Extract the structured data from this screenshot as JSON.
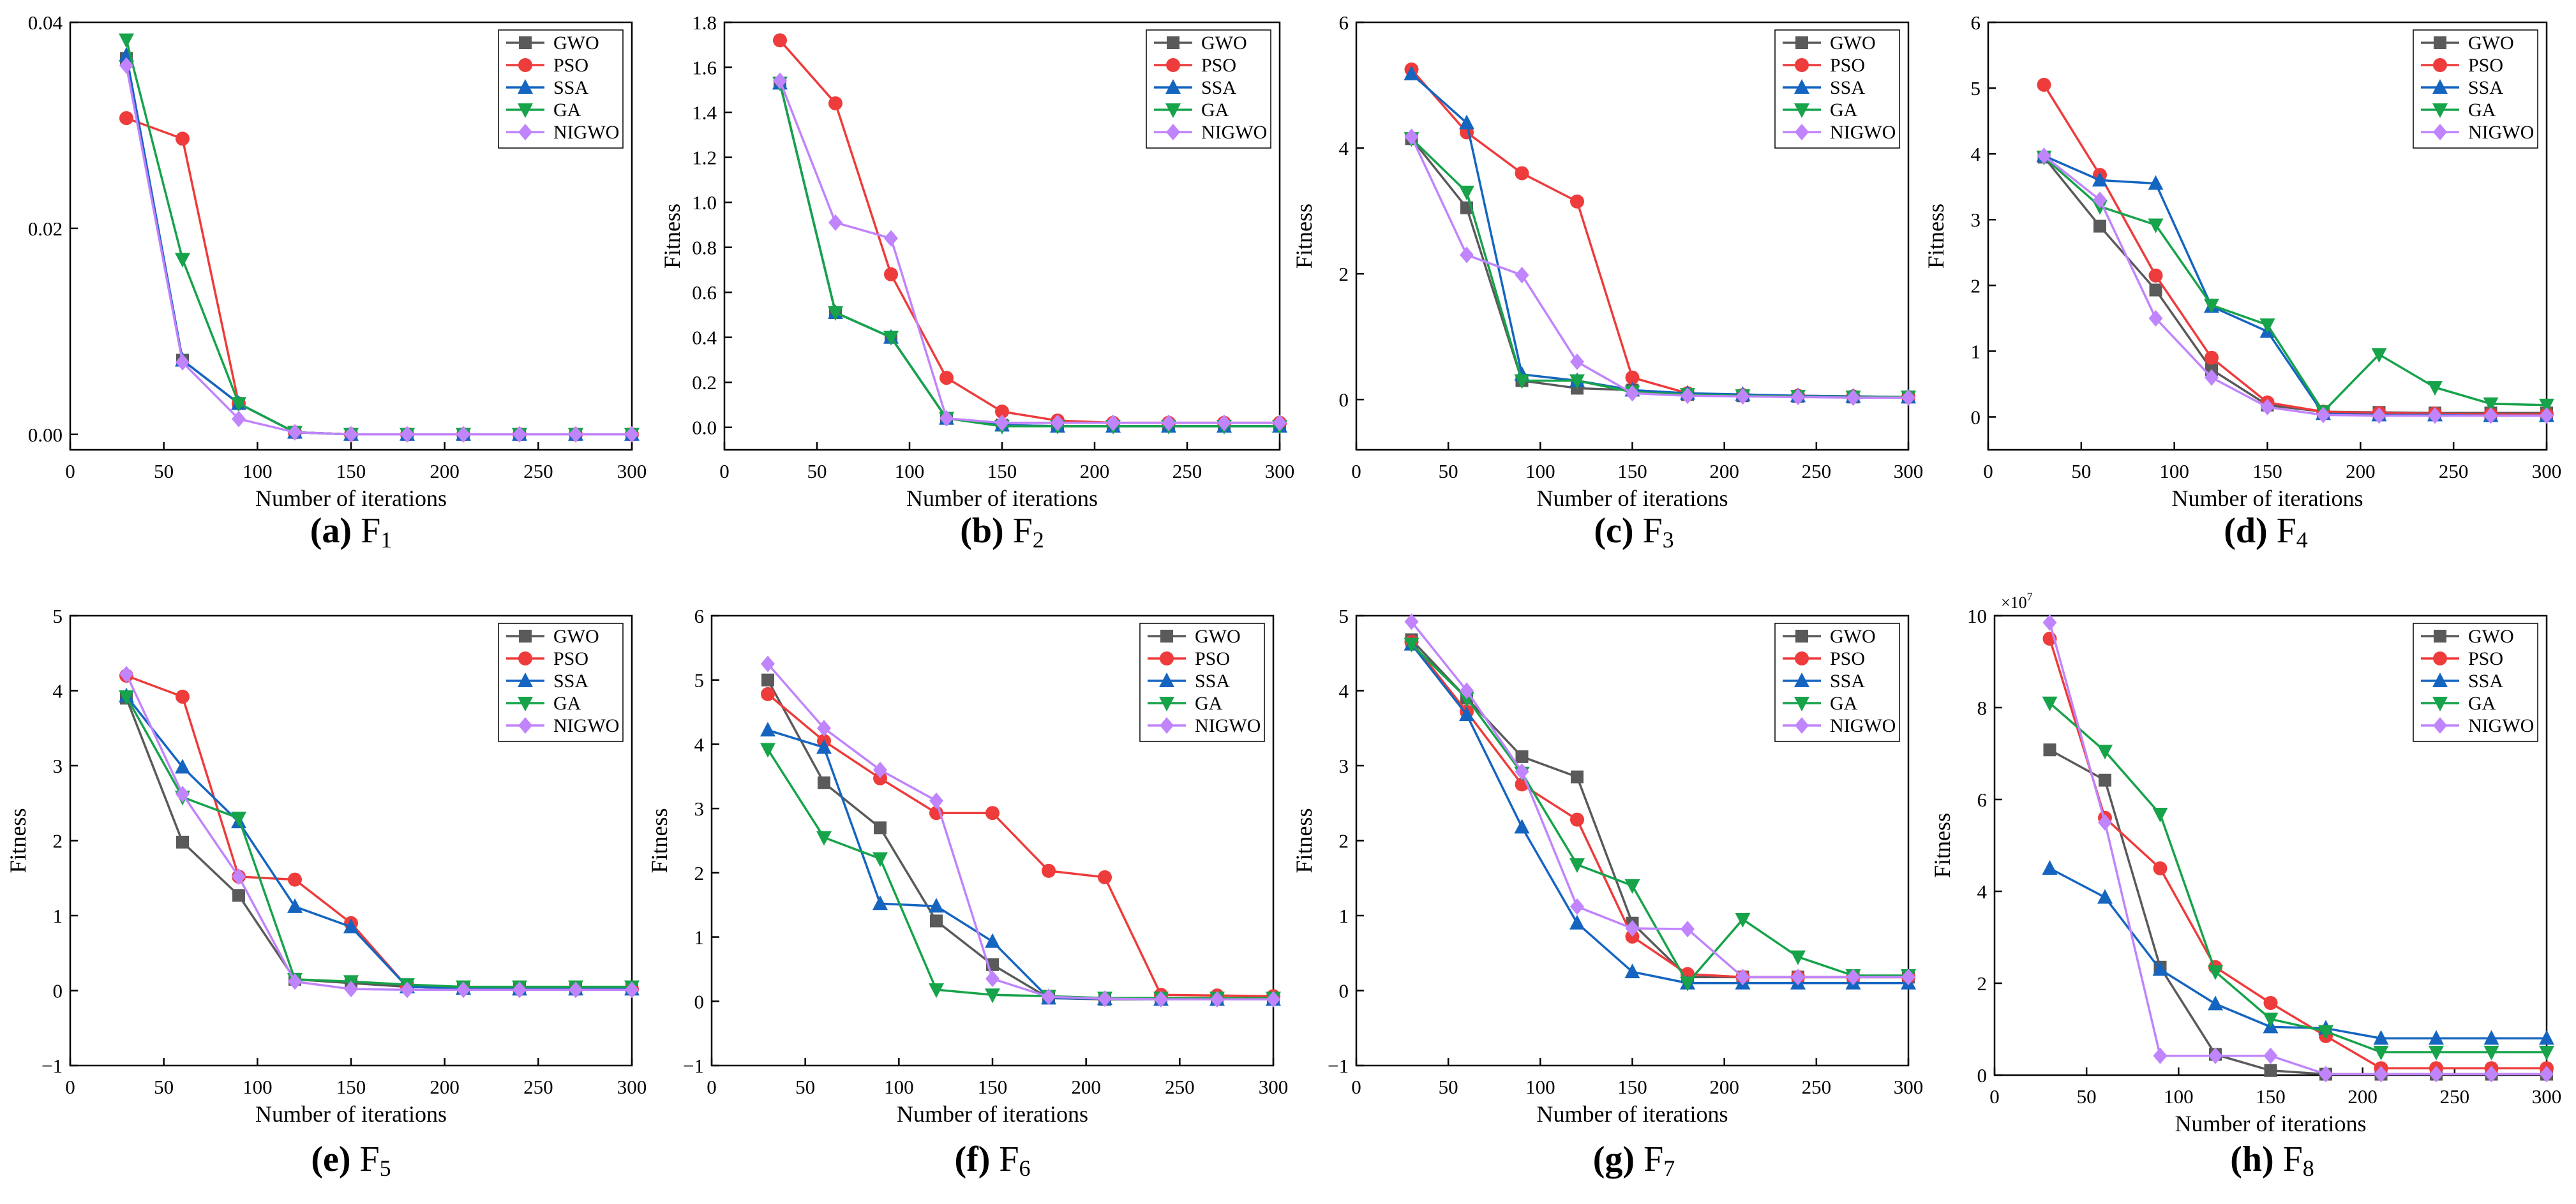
{
  "figure": {
    "legend_names": [
      "GWO",
      "PSO",
      "SSA",
      "GA",
      "NIGWO"
    ]
  },
  "colors": {
    "GWO": "#5a5a5a",
    "PSO": "#ee3b3b",
    "SSA": "#1565c0",
    "GA": "#16a34a",
    "NIGWO": "#c084fc"
  },
  "chart_data": [
    {
      "type": "line",
      "caption": {
        "letter": "(a)",
        "name": "F",
        "sub": "1"
      },
      "xlabel": "Number of iterations",
      "ylabel": "",
      "xlim": [
        0,
        300
      ],
      "ylim": [
        -0.0015,
        0.04
      ],
      "xticks": [
        0,
        50,
        100,
        150,
        200,
        250,
        300
      ],
      "yticks": [
        0,
        0.02,
        0.04
      ],
      "ytick_labels": [
        "0.00",
        "0.02",
        "0.04"
      ],
      "legend": "top-right",
      "x": [
        30,
        60,
        90,
        120,
        150,
        180,
        210,
        240,
        270,
        300
      ],
      "series": [
        {
          "name": "GWO",
          "values": [
            0.0365,
            0.0072,
            0.003,
            0.0002,
            0,
            0,
            0,
            0,
            0,
            0
          ]
        },
        {
          "name": "PSO",
          "values": [
            0.0307,
            0.0287,
            0.003,
            0.0002,
            0,
            0,
            0,
            0,
            0,
            0
          ]
        },
        {
          "name": "SSA",
          "values": [
            0.0368,
            0.0072,
            0.003,
            0.0002,
            0,
            0,
            0,
            0,
            0,
            0
          ]
        },
        {
          "name": "GA",
          "values": [
            0.0383,
            0.017,
            0.003,
            0.0002,
            0,
            0,
            0,
            0,
            0,
            0
          ]
        },
        {
          "name": "NIGWO",
          "values": [
            0.0358,
            0.007,
            0.0015,
            0.0002,
            0,
            0,
            0,
            0,
            0,
            0
          ]
        }
      ]
    },
    {
      "type": "line",
      "caption": {
        "letter": "(b)",
        "name": "F",
        "sub": "2"
      },
      "xlabel": "Number of iterations",
      "ylabel": "Fitness",
      "xlim": [
        0,
        300
      ],
      "ylim": [
        -0.1,
        1.8
      ],
      "xticks": [
        0,
        50,
        100,
        150,
        200,
        250,
        300
      ],
      "yticks": [
        0,
        0.2,
        0.4,
        0.6,
        0.8,
        1.0,
        1.2,
        1.4,
        1.6,
        1.8
      ],
      "ytick_labels": [
        "0.0",
        "0.2",
        "0.4",
        "0.6",
        "0.8",
        "1.0",
        "1.2",
        "1.4",
        "1.6",
        "1.8"
      ],
      "legend": "top-right",
      "x": [
        30,
        60,
        90,
        120,
        150,
        180,
        210,
        240,
        270,
        300
      ],
      "series": [
        {
          "name": "GWO",
          "values": [
            1.53,
            0.51,
            0.4,
            0.04,
            0.01,
            0.005,
            0.005,
            0.005,
            0.005,
            0.005
          ]
        },
        {
          "name": "PSO",
          "values": [
            1.72,
            1.44,
            0.68,
            0.22,
            0.07,
            0.03,
            0.02,
            0.02,
            0.02,
            0.02
          ]
        },
        {
          "name": "SSA",
          "values": [
            1.53,
            0.51,
            0.4,
            0.04,
            0.01,
            0.005,
            0.005,
            0.005,
            0.005,
            0.005
          ]
        },
        {
          "name": "GA",
          "values": [
            1.53,
            0.51,
            0.4,
            0.04,
            0.005,
            0.005,
            0.005,
            0.005,
            0.005,
            0.005
          ]
        },
        {
          "name": "NIGWO",
          "values": [
            1.54,
            0.91,
            0.84,
            0.04,
            0.02,
            0.02,
            0.02,
            0.02,
            0.02,
            0.02
          ]
        }
      ]
    },
    {
      "type": "line",
      "caption": {
        "letter": "(c)",
        "name": "F",
        "sub": "3"
      },
      "xlabel": "Number of iterations",
      "ylabel": "Fitness",
      "xlim": [
        0,
        300
      ],
      "ylim": [
        -0.8,
        6
      ],
      "xticks": [
        0,
        50,
        100,
        150,
        200,
        250,
        300
      ],
      "yticks": [
        0,
        2,
        4,
        6
      ],
      "ytick_labels": [
        "0",
        "2",
        "4",
        "6"
      ],
      "legend": "top-right",
      "x": [
        30,
        60,
        90,
        120,
        150,
        180,
        210,
        240,
        270,
        300
      ],
      "series": [
        {
          "name": "GWO",
          "values": [
            4.15,
            3.05,
            0.3,
            0.18,
            0.15,
            0.08,
            0.06,
            0.05,
            0.04,
            0.04
          ]
        },
        {
          "name": "PSO",
          "values": [
            5.25,
            4.25,
            3.6,
            3.15,
            0.35,
            0.1,
            0.07,
            0.06,
            0.05,
            0.04
          ]
        },
        {
          "name": "SSA",
          "values": [
            5.18,
            4.4,
            0.4,
            0.3,
            0.15,
            0.1,
            0.08,
            0.06,
            0.05,
            0.04
          ]
        },
        {
          "name": "GA",
          "values": [
            4.15,
            3.3,
            0.3,
            0.3,
            0.12,
            0.08,
            0.06,
            0.05,
            0.04,
            0.04
          ]
        },
        {
          "name": "NIGWO",
          "values": [
            4.18,
            2.3,
            1.98,
            0.6,
            0.1,
            0.06,
            0.05,
            0.04,
            0.03,
            0.03
          ]
        }
      ]
    },
    {
      "type": "line",
      "caption": {
        "letter": "(d)",
        "name": "F",
        "sub": "4"
      },
      "xlabel": "Number of iterations",
      "ylabel": "Fitness",
      "xlim": [
        0,
        300
      ],
      "ylim": [
        -0.5,
        6
      ],
      "xticks": [
        0,
        50,
        100,
        150,
        200,
        250,
        300
      ],
      "yticks": [
        0,
        1,
        2,
        3,
        4,
        5,
        6
      ],
      "ytick_labels": [
        "0",
        "1",
        "2",
        "3",
        "4",
        "5",
        "6"
      ],
      "legend": "top-right",
      "x": [
        30,
        60,
        90,
        120,
        150,
        180,
        210,
        240,
        270,
        300
      ],
      "series": [
        {
          "name": "GWO",
          "values": [
            3.95,
            2.9,
            1.93,
            0.72,
            0.18,
            0.08,
            0.07,
            0.06,
            0.06,
            0.06
          ]
        },
        {
          "name": "PSO",
          "values": [
            5.05,
            3.68,
            2.15,
            0.9,
            0.22,
            0.08,
            0.06,
            0.05,
            0.04,
            0.04
          ]
        },
        {
          "name": "SSA",
          "values": [
            3.97,
            3.6,
            3.55,
            1.68,
            1.3,
            0.05,
            0.03,
            0.03,
            0.02,
            0.02
          ]
        },
        {
          "name": "GA",
          "values": [
            3.95,
            3.2,
            2.92,
            1.7,
            1.4,
            0.08,
            0.95,
            0.45,
            0.2,
            0.18
          ]
        },
        {
          "name": "NIGWO",
          "values": [
            3.97,
            3.3,
            1.5,
            0.6,
            0.15,
            0.03,
            0.02,
            0.02,
            0.02,
            0.02
          ]
        }
      ]
    },
    {
      "type": "line",
      "caption": {
        "letter": "(e)",
        "name": "F",
        "sub": "5"
      },
      "xlabel": "Number of iterations",
      "ylabel": "Fitness",
      "xlim": [
        0,
        300
      ],
      "ylim": [
        -1,
        5
      ],
      "xticks": [
        0,
        50,
        100,
        150,
        200,
        250,
        300
      ],
      "yticks": [
        -1,
        0,
        1,
        2,
        3,
        4,
        5
      ],
      "ytick_labels": [
        "−1",
        "0",
        "1",
        "2",
        "3",
        "4",
        "5"
      ],
      "legend": "top-right",
      "x": [
        30,
        60,
        90,
        120,
        150,
        180,
        210,
        240,
        270,
        300
      ],
      "series": [
        {
          "name": "GWO",
          "values": [
            3.9,
            1.98,
            1.27,
            0.15,
            0.1,
            0.05,
            0.03,
            0.02,
            0.02,
            0.02
          ]
        },
        {
          "name": "PSO",
          "values": [
            4.2,
            3.92,
            1.52,
            1.48,
            0.9,
            0.05,
            0.03,
            0.02,
            0.02,
            0.02
          ]
        },
        {
          "name": "SSA",
          "values": [
            3.93,
            2.98,
            2.25,
            1.12,
            0.85,
            0.05,
            0.03,
            0.02,
            0.02,
            0.02
          ]
        },
        {
          "name": "GA",
          "values": [
            3.92,
            2.58,
            2.3,
            0.15,
            0.12,
            0.08,
            0.05,
            0.05,
            0.05,
            0.05
          ]
        },
        {
          "name": "NIGWO",
          "values": [
            4.22,
            2.62,
            1.52,
            0.12,
            0.02,
            0.01,
            0.01,
            0.01,
            0.01,
            0.01
          ]
        }
      ]
    },
    {
      "type": "line",
      "caption": {
        "letter": "(f)",
        "name": "F",
        "sub": "6"
      },
      "xlabel": "Number of iterations",
      "ylabel": "Fitness",
      "xlim": [
        0,
        300
      ],
      "ylim": [
        -1,
        6
      ],
      "xticks": [
        0,
        50,
        100,
        150,
        200,
        250,
        300
      ],
      "yticks": [
        -1,
        0,
        1,
        2,
        3,
        4,
        5,
        6
      ],
      "ytick_labels": [
        "−1",
        "0",
        "1",
        "2",
        "3",
        "4",
        "5",
        "6"
      ],
      "legend": "top-right",
      "x": [
        30,
        60,
        90,
        120,
        150,
        180,
        210,
        240,
        270,
        300
      ],
      "series": [
        {
          "name": "GWO",
          "values": [
            5.0,
            3.4,
            2.7,
            1.25,
            0.57,
            0.05,
            0.03,
            0.03,
            0.03,
            0.03
          ]
        },
        {
          "name": "PSO",
          "values": [
            4.78,
            4.05,
            3.47,
            2.93,
            2.93,
            2.03,
            1.93,
            0.1,
            0.09,
            0.08
          ]
        },
        {
          "name": "SSA",
          "values": [
            4.22,
            3.95,
            1.52,
            1.48,
            0.93,
            0.05,
            0.04,
            0.03,
            0.03,
            0.03
          ]
        },
        {
          "name": "GA",
          "values": [
            3.92,
            2.55,
            2.22,
            0.18,
            0.1,
            0.08,
            0.05,
            0.05,
            0.05,
            0.05
          ]
        },
        {
          "name": "NIGWO",
          "values": [
            5.25,
            4.25,
            3.6,
            3.12,
            0.35,
            0.07,
            0.04,
            0.03,
            0.03,
            0.03
          ]
        }
      ]
    },
    {
      "type": "line",
      "caption": {
        "letter": "(g)",
        "name": "F",
        "sub": "7"
      },
      "xlabel": "Number of iterations",
      "ylabel": "Fitness",
      "xlim": [
        0,
        300
      ],
      "ylim": [
        -1,
        5
      ],
      "xticks": [
        0,
        50,
        100,
        150,
        200,
        250,
        300
      ],
      "yticks": [
        -1,
        0,
        1,
        2,
        3,
        4,
        5
      ],
      "ytick_labels": [
        "−1",
        "0",
        "1",
        "2",
        "3",
        "4",
        "5"
      ],
      "legend": "top-right",
      "x": [
        30,
        60,
        90,
        120,
        150,
        180,
        210,
        240,
        270,
        300
      ],
      "series": [
        {
          "name": "GWO",
          "values": [
            4.68,
            3.9,
            3.12,
            2.85,
            0.9,
            0.18,
            0.18,
            0.18,
            0.18,
            0.18
          ]
        },
        {
          "name": "PSO",
          "values": [
            4.65,
            3.72,
            2.75,
            2.28,
            0.72,
            0.22,
            0.18,
            0.18,
            0.18,
            0.18
          ]
        },
        {
          "name": "SSA",
          "values": [
            4.62,
            3.68,
            2.18,
            0.9,
            0.25,
            0.1,
            0.1,
            0.1,
            0.1,
            0.1
          ]
        },
        {
          "name": "GA",
          "values": [
            4.62,
            3.9,
            2.9,
            1.68,
            1.4,
            0.1,
            0.95,
            0.45,
            0.2,
            0.2
          ]
        },
        {
          "name": "NIGWO",
          "values": [
            4.92,
            4.0,
            2.92,
            1.12,
            0.83,
            0.82,
            0.18,
            0.18,
            0.18,
            0.18
          ]
        }
      ]
    },
    {
      "type": "line",
      "caption": {
        "letter": "(h)",
        "name": "F",
        "sub": "8"
      },
      "xlabel": "Number of iterations",
      "ylabel": "Fitness",
      "multiplier": "×10",
      "multiplier_exp": "7",
      "xlim": [
        0,
        300
      ],
      "ylim": [
        0,
        10
      ],
      "xticks": [
        0,
        50,
        100,
        150,
        200,
        250,
        300
      ],
      "yticks": [
        0,
        2,
        4,
        6,
        8,
        10
      ],
      "ytick_labels": [
        "0",
        "2",
        "4",
        "6",
        "8",
        "10"
      ],
      "legend": "top-right",
      "x": [
        30,
        60,
        90,
        120,
        150,
        180,
        210,
        240,
        270,
        300
      ],
      "series": [
        {
          "name": "GWO",
          "values": [
            7.08,
            6.42,
            2.35,
            0.45,
            0.1,
            0.02,
            0.02,
            0.02,
            0.02,
            0.02
          ]
        },
        {
          "name": "PSO",
          "values": [
            9.5,
            5.6,
            4.5,
            2.35,
            1.57,
            0.85,
            0.15,
            0.15,
            0.15,
            0.15
          ]
        },
        {
          "name": "SSA",
          "values": [
            4.5,
            3.87,
            2.3,
            1.55,
            1.05,
            1.02,
            0.8,
            0.8,
            0.8,
            0.8
          ]
        },
        {
          "name": "GA",
          "values": [
            8.1,
            7.05,
            5.68,
            2.25,
            1.22,
            0.95,
            0.5,
            0.5,
            0.5,
            0.5
          ]
        },
        {
          "name": "NIGWO",
          "values": [
            9.85,
            5.5,
            0.42,
            0.42,
            0.42,
            0.02,
            0.02,
            0.02,
            0.02,
            0.02
          ]
        }
      ]
    }
  ]
}
